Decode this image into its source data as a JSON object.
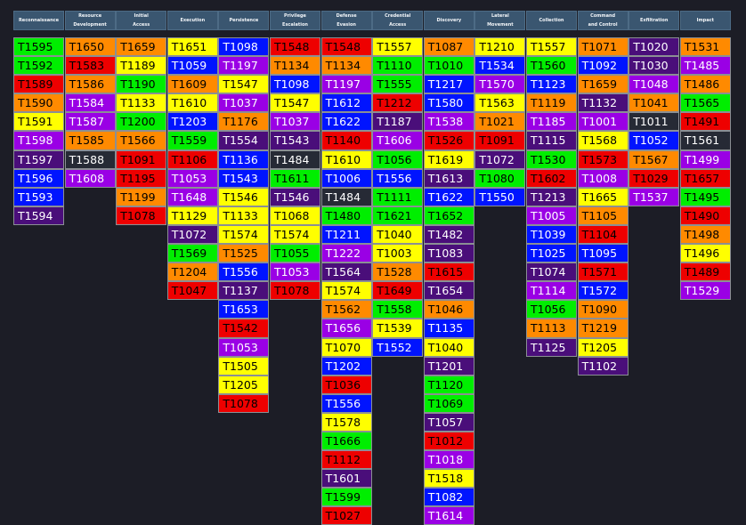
{
  "colors": {
    "green": "#00ee00",
    "orange": "#ff8a00",
    "red": "#ee0000",
    "yellow": "#ffff00",
    "purple": "#9a00e5",
    "dpurple": "#4a0e7a",
    "blue": "#0014ff",
    "dark": "#262a35",
    "header_bg": "#3a5670",
    "page_bg": "#1c1d26"
  },
  "tactics": [
    {
      "header": [
        "Reconnaissance"
      ],
      "slug": "reconnaissance",
      "cells": [
        [
          "T1595",
          "green"
        ],
        [
          "T1592",
          "green"
        ],
        [
          "T1589",
          "red"
        ],
        [
          "T1590",
          "orange"
        ],
        [
          "T1591",
          "yellow"
        ],
        [
          "T1598",
          "purple"
        ],
        [
          "T1597",
          "dpurple"
        ],
        [
          "T1596",
          "blue"
        ],
        [
          "T1593",
          "blue"
        ],
        [
          "T1594",
          "dpurple"
        ]
      ]
    },
    {
      "header": [
        "Resource",
        "Development"
      ],
      "slug": "resource-development",
      "cells": [
        [
          "T1650",
          "orange"
        ],
        [
          "T1583",
          "red"
        ],
        [
          "T1586",
          "orange"
        ],
        [
          "T1584",
          "purple"
        ],
        [
          "T1587",
          "purple"
        ],
        [
          "T1585",
          "orange"
        ],
        [
          "T1588",
          "dark"
        ],
        [
          "T1608",
          "purple"
        ]
      ]
    },
    {
      "header": [
        "Initial",
        "Access"
      ],
      "slug": "initial-access",
      "cells": [
        [
          "T1659",
          "orange"
        ],
        [
          "T1189",
          "yellow"
        ],
        [
          "T1190",
          "green"
        ],
        [
          "T1133",
          "yellow"
        ],
        [
          "T1200",
          "green"
        ],
        [
          "T1566",
          "orange"
        ],
        [
          "T1091",
          "red"
        ],
        [
          "T1195",
          "red"
        ],
        [
          "T1199",
          "orange"
        ],
        [
          "T1078",
          "red"
        ]
      ]
    },
    {
      "header": [
        "Execution"
      ],
      "slug": "execution",
      "cells": [
        [
          "T1651",
          "yellow"
        ],
        [
          "T1059",
          "blue"
        ],
        [
          "T1609",
          "orange"
        ],
        [
          "T1610",
          "yellow"
        ],
        [
          "T1203",
          "blue"
        ],
        [
          "T1559",
          "green"
        ],
        [
          "T1106",
          "red"
        ],
        [
          "T1053",
          "purple"
        ],
        [
          "T1648",
          "purple"
        ],
        [
          "T1129",
          "yellow"
        ],
        [
          "T1072",
          "dpurple"
        ],
        [
          "T1569",
          "green"
        ],
        [
          "T1204",
          "orange"
        ],
        [
          "T1047",
          "red"
        ]
      ]
    },
    {
      "header": [
        "Persistence"
      ],
      "slug": "persistence",
      "cells": [
        [
          "T1098",
          "blue"
        ],
        [
          "T1197",
          "purple"
        ],
        [
          "T1547",
          "yellow"
        ],
        [
          "T1037",
          "purple"
        ],
        [
          "T1176",
          "orange"
        ],
        [
          "T1554",
          "dpurple"
        ],
        [
          "T1136",
          "blue"
        ],
        [
          "T1543",
          "blue"
        ],
        [
          "T1546",
          "yellow"
        ],
        [
          "T1133",
          "yellow"
        ],
        [
          "T1574",
          "yellow"
        ],
        [
          "T1525",
          "orange"
        ],
        [
          "T1556",
          "blue"
        ],
        [
          "T1137",
          "dpurple"
        ],
        [
          "T1653",
          "blue"
        ],
        [
          "T1542",
          "red"
        ],
        [
          "T1053",
          "purple"
        ],
        [
          "T1505",
          "yellow"
        ],
        [
          "T1205",
          "yellow"
        ],
        [
          "T1078",
          "red"
        ]
      ]
    },
    {
      "header": [
        "Privilege",
        "Escalation"
      ],
      "slug": "privilege-escalation",
      "cells": [
        [
          "T1548",
          "red"
        ],
        [
          "T1134",
          "orange"
        ],
        [
          "T1098",
          "blue"
        ],
        [
          "T1547",
          "yellow"
        ],
        [
          "T1037",
          "purple"
        ],
        [
          "T1543",
          "dpurple"
        ],
        [
          "T1484",
          "dark"
        ],
        [
          "T1611",
          "green"
        ],
        [
          "T1546",
          "dpurple"
        ],
        [
          "T1068",
          "yellow"
        ],
        [
          "T1574",
          "yellow"
        ],
        [
          "T1055",
          "green"
        ],
        [
          "T1053",
          "purple"
        ],
        [
          "T1078",
          "red"
        ]
      ]
    },
    {
      "header": [
        "Defense",
        "Evasion"
      ],
      "slug": "defense-evasion",
      "cells": [
        [
          "T1548",
          "red"
        ],
        [
          "T1134",
          "orange"
        ],
        [
          "T1197",
          "purple"
        ],
        [
          "T1612",
          "blue"
        ],
        [
          "T1622",
          "blue"
        ],
        [
          "T1140",
          "red"
        ],
        [
          "T1610",
          "yellow"
        ],
        [
          "T1006",
          "blue"
        ],
        [
          "T1484",
          "dark"
        ],
        [
          "T1480",
          "green"
        ],
        [
          "T1211",
          "blue"
        ],
        [
          "T1222",
          "purple"
        ],
        [
          "T1564",
          "dpurple"
        ],
        [
          "T1574",
          "yellow"
        ],
        [
          "T1562",
          "orange"
        ],
        [
          "T1656",
          "purple"
        ],
        [
          "T1070",
          "yellow"
        ],
        [
          "T1202",
          "blue"
        ],
        [
          "T1036",
          "red"
        ],
        [
          "T1556",
          "blue"
        ],
        [
          "T1578",
          "yellow"
        ],
        [
          "T1666",
          "green"
        ],
        [
          "T1112",
          "red"
        ],
        [
          "T1601",
          "dpurple"
        ],
        [
          "T1599",
          "green"
        ],
        [
          "T1027",
          "red"
        ]
      ]
    },
    {
      "header": [
        "Credential",
        "Access"
      ],
      "slug": "credential-access",
      "cells": [
        [
          "T1557",
          "yellow"
        ],
        [
          "T1110",
          "green"
        ],
        [
          "T1555",
          "green"
        ],
        [
          "T1212",
          "red"
        ],
        [
          "T1187",
          "dpurple"
        ],
        [
          "T1606",
          "purple"
        ],
        [
          "T1056",
          "green"
        ],
        [
          "T1556",
          "blue"
        ],
        [
          "T1111",
          "green"
        ],
        [
          "T1621",
          "green"
        ],
        [
          "T1040",
          "yellow"
        ],
        [
          "T1003",
          "yellow"
        ],
        [
          "T1528",
          "orange"
        ],
        [
          "T1649",
          "red"
        ],
        [
          "T1558",
          "green"
        ],
        [
          "T1539",
          "yellow"
        ],
        [
          "T1552",
          "blue"
        ]
      ]
    },
    {
      "header": [
        "Discovery"
      ],
      "slug": "discovery",
      "cells": [
        [
          "T1087",
          "orange"
        ],
        [
          "T1010",
          "green"
        ],
        [
          "T1217",
          "blue"
        ],
        [
          "T1580",
          "blue"
        ],
        [
          "T1538",
          "purple"
        ],
        [
          "T1526",
          "red"
        ],
        [
          "T1619",
          "yellow"
        ],
        [
          "T1613",
          "dpurple"
        ],
        [
          "T1622",
          "blue"
        ],
        [
          "T1652",
          "green"
        ],
        [
          "T1482",
          "dpurple"
        ],
        [
          "T1083",
          "dpurple"
        ],
        [
          "T1615",
          "red"
        ],
        [
          "T1654",
          "dpurple"
        ],
        [
          "T1046",
          "orange"
        ],
        [
          "T1135",
          "blue"
        ],
        [
          "T1040",
          "yellow"
        ],
        [
          "T1201",
          "dpurple"
        ],
        [
          "T1120",
          "green"
        ],
        [
          "T1069",
          "green"
        ],
        [
          "T1057",
          "dpurple"
        ],
        [
          "T1012",
          "red"
        ],
        [
          "T1018",
          "purple"
        ],
        [
          "T1518",
          "yellow"
        ],
        [
          "T1082",
          "blue"
        ],
        [
          "T1614",
          "purple"
        ]
      ]
    },
    {
      "header": [
        "Lateral",
        "Movement"
      ],
      "slug": "lateral-movement",
      "cells": [
        [
          "T1210",
          "yellow"
        ],
        [
          "T1534",
          "blue"
        ],
        [
          "T1570",
          "purple"
        ],
        [
          "T1563",
          "yellow"
        ],
        [
          "T1021",
          "orange"
        ],
        [
          "T1091",
          "red"
        ],
        [
          "T1072",
          "dpurple"
        ],
        [
          "T1080",
          "green"
        ],
        [
          "T1550",
          "blue"
        ]
      ]
    },
    {
      "header": [
        "Collection"
      ],
      "slug": "collection",
      "cells": [
        [
          "T1557",
          "yellow"
        ],
        [
          "T1560",
          "green"
        ],
        [
          "T1123",
          "blue"
        ],
        [
          "T1119",
          "orange"
        ],
        [
          "T1185",
          "purple"
        ],
        [
          "T1115",
          "dpurple"
        ],
        [
          "T1530",
          "green"
        ],
        [
          "T1602",
          "red"
        ],
        [
          "T1213",
          "dpurple"
        ],
        [
          "T1005",
          "purple"
        ],
        [
          "T1039",
          "blue"
        ],
        [
          "T1025",
          "blue"
        ],
        [
          "T1074",
          "dpurple"
        ],
        [
          "T1114",
          "purple"
        ],
        [
          "T1056",
          "green"
        ],
        [
          "T1113",
          "orange"
        ],
        [
          "T1125",
          "dpurple"
        ]
      ]
    },
    {
      "header": [
        "Command",
        "and Control"
      ],
      "slug": "command-and-control",
      "cells": [
        [
          "T1071",
          "orange"
        ],
        [
          "T1092",
          "blue"
        ],
        [
          "T1659",
          "orange"
        ],
        [
          "T1132",
          "dpurple"
        ],
        [
          "T1001",
          "purple"
        ],
        [
          "T1568",
          "yellow"
        ],
        [
          "T1573",
          "red"
        ],
        [
          "T1008",
          "purple"
        ],
        [
          "T1665",
          "yellow"
        ],
        [
          "T1105",
          "orange"
        ],
        [
          "T1104",
          "red"
        ],
        [
          "T1095",
          "blue"
        ],
        [
          "T1571",
          "red"
        ],
        [
          "T1572",
          "blue"
        ],
        [
          "T1090",
          "orange"
        ],
        [
          "T1219",
          "orange"
        ],
        [
          "T1205",
          "yellow"
        ],
        [
          "T1102",
          "dpurple"
        ]
      ]
    },
    {
      "header": [
        "Exfiltration"
      ],
      "slug": "exfiltration",
      "cells": [
        [
          "T1020",
          "dpurple"
        ],
        [
          "T1030",
          "dpurple"
        ],
        [
          "T1048",
          "purple"
        ],
        [
          "T1041",
          "orange"
        ],
        [
          "T1011",
          "dark"
        ],
        [
          "T1052",
          "blue"
        ],
        [
          "T1567",
          "orange"
        ],
        [
          "T1029",
          "red"
        ],
        [
          "T1537",
          "purple"
        ]
      ]
    },
    {
      "header": [
        "Impact"
      ],
      "slug": "impact",
      "cells": [
        [
          "T1531",
          "orange"
        ],
        [
          "T1485",
          "purple"
        ],
        [
          "T1486",
          "orange"
        ],
        [
          "T1565",
          "green"
        ],
        [
          "T1491",
          "red"
        ],
        [
          "T1561",
          "dark"
        ],
        [
          "T1499",
          "purple"
        ],
        [
          "T1657",
          "red"
        ],
        [
          "T1495",
          "green"
        ],
        [
          "T1490",
          "red"
        ],
        [
          "T1498",
          "orange"
        ],
        [
          "T1496",
          "yellow"
        ],
        [
          "T1489",
          "red"
        ],
        [
          "T1529",
          "purple"
        ]
      ]
    }
  ]
}
